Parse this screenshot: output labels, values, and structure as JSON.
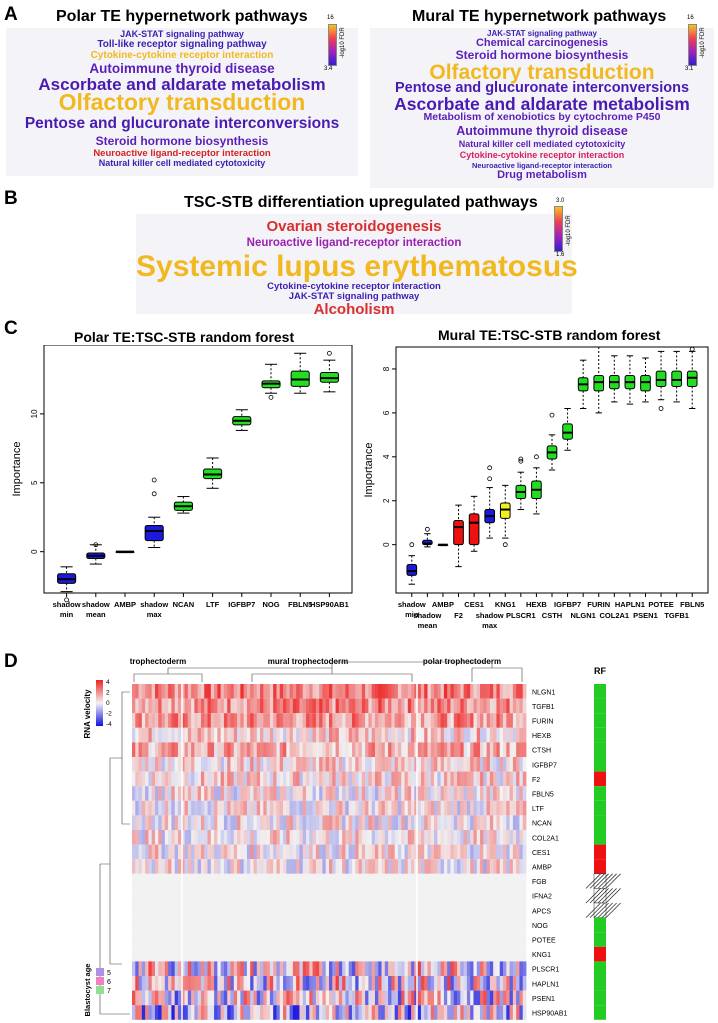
{
  "panels": {
    "a": "A",
    "b": "B",
    "c": "C",
    "d": "D"
  },
  "panel_a": {
    "polar": {
      "title": "Polar TE hypernetwork pathways",
      "colorbar": {
        "max": "16",
        "min": "3.4",
        "label": "-log10 FDR"
      },
      "terms": [
        {
          "text": "JAK-STAT signaling pathway",
          "size": 9,
          "color": "#3c1fb0"
        },
        {
          "text": "Toll-like receptor signaling pathway",
          "size": 10,
          "color": "#3c1fb0"
        },
        {
          "text": "Cytokine-cytokine receptor interaction",
          "size": 10,
          "color": "#f2b820"
        },
        {
          "text": "Autoimmune thyroid disease",
          "size": 13.5,
          "color": "#5a1fb8"
        },
        {
          "text": "Ascorbate and aldarate metabolism",
          "size": 17,
          "color": "#4a1bb0"
        },
        {
          "text": "Olfactory transduction",
          "size": 23,
          "color": "#f2b820"
        },
        {
          "text": "Pentose and glucuronate interconversions",
          "size": 15.5,
          "color": "#4a1bb0"
        },
        {
          "text": "Steroid hormone biosynthesis",
          "size": 12,
          "color": "#5a1fb8"
        },
        {
          "text": "Neuroactive ligand-receptor interaction",
          "size": 9.5,
          "color": "#d82020"
        },
        {
          "text": "Natural killer cell mediated cytotoxicity",
          "size": 9,
          "color": "#3c1fb0"
        }
      ]
    },
    "mural": {
      "title": "Mural TE hypernetwork pathways",
      "colorbar": {
        "max": "16",
        "min": "3.1",
        "label": "-log10 FDR"
      },
      "terms": [
        {
          "text": "JAK-STAT signaling pathway",
          "size": 8,
          "color": "#3c1fb0"
        },
        {
          "text": "Chemical carcinogenesis",
          "size": 11,
          "color": "#5a1fb8"
        },
        {
          "text": "Steroid hormone biosynthesis",
          "size": 12,
          "color": "#5a1fb8"
        },
        {
          "text": "Olfactory transduction",
          "size": 21,
          "color": "#f2b820"
        },
        {
          "text": "Pentose and glucuronate interconversions",
          "size": 14.5,
          "color": "#4a1bb0"
        },
        {
          "text": "Ascorbate and aldarate metabolism",
          "size": 17.5,
          "color": "#4a1bb0"
        },
        {
          "text": "Metabolism of xenobiotics by cytochrome P450",
          "size": 10.5,
          "color": "#5a1fb8"
        },
        {
          "text": "Autoimmune thyroid disease",
          "size": 12.5,
          "color": "#5a1fb8"
        },
        {
          "text": "Natural killer cell mediated cytotoxicity",
          "size": 9,
          "color": "#5a1fb8"
        },
        {
          "text": "Cytokine-cytokine receptor interaction",
          "size": 9,
          "color": "#d82060"
        },
        {
          "text": "Neuroactive ligand-receptor interaction",
          "size": 7.5,
          "color": "#3c1fb0"
        },
        {
          "text": "Drug metabolism",
          "size": 11,
          "color": "#5a1fb8"
        }
      ]
    }
  },
  "panel_b": {
    "title": "TSC-STB differentiation upregulated pathways",
    "colorbar": {
      "max": "3.0",
      "min": "1.6",
      "label": "-log10 FDR"
    },
    "terms": [
      {
        "text": "Ovarian steroidogenesis",
        "size": 15,
        "color": "#d83030"
      },
      {
        "text": "Neuroactive ligand-receptor interaction",
        "size": 11.5,
        "color": "#9a20b0"
      },
      {
        "text": "Systemic lupus erythematosus",
        "size": 30,
        "color": "#f2b820"
      },
      {
        "text": "Cytokine-cytokine receptor interaction",
        "size": 9.5,
        "color": "#3c1fb0"
      },
      {
        "text": "JAK-STAT signaling pathway",
        "size": 9.5,
        "color": "#3c1fb0"
      },
      {
        "text": "Alcoholism",
        "size": 15,
        "color": "#d83030"
      }
    ]
  },
  "chart_data": [
    {
      "type": "box",
      "title": "Polar TE:TSC-STB random forest",
      "xlabel": "",
      "ylabel": "Importance",
      "ylim": [
        -3,
        15
      ],
      "yticks": [
        0,
        5,
        10
      ],
      "categories": [
        "shadow min",
        "shadow mean",
        "AMBP",
        "shadow max",
        "NCAN",
        "LTF",
        "IGFBP7",
        "NOG",
        "FBLN5",
        "HSP90AB1"
      ],
      "medians": [
        -2.0,
        -0.3,
        0.0,
        1.5,
        3.3,
        5.6,
        9.5,
        12.2,
        12.5,
        12.6
      ],
      "q1": [
        -2.3,
        -0.5,
        0.0,
        0.8,
        3.0,
        5.3,
        9.2,
        11.9,
        12.0,
        12.3
      ],
      "q3": [
        -1.6,
        -0.1,
        0.0,
        1.9,
        3.6,
        6.0,
        9.8,
        12.4,
        13.1,
        13.0
      ],
      "whisker_low": [
        -2.9,
        -0.9,
        0.0,
        0.3,
        2.8,
        4.6,
        8.8,
        11.5,
        11.5,
        11.6
      ],
      "whisker_high": [
        -1.1,
        0.5,
        0.0,
        2.5,
        4.0,
        6.8,
        10.3,
        13.6,
        14.4,
        13.9
      ],
      "outliers": [
        [
          -3.5
        ],
        [
          0.5
        ],
        [],
        [
          4.2,
          5.2
        ],
        [],
        [],
        [],
        [
          11.2
        ],
        [],
        [
          14.4
        ]
      ],
      "colors": [
        "#1a1adc",
        "#1a1adc",
        "#1a1adc",
        "#1a1adc",
        "#22dd22",
        "#22dd22",
        "#22dd22",
        "#22dd22",
        "#22dd22",
        "#22dd22"
      ]
    },
    {
      "type": "box",
      "title": "Mural TE:TSC-STB random forest",
      "xlabel": "",
      "ylabel": "Importance",
      "ylim": [
        -2.2,
        9
      ],
      "yticks": [
        0,
        2,
        4,
        6,
        8
      ],
      "categories": [
        "shadow min",
        "shadow mean",
        "AMBP",
        "F2",
        "CES1",
        "shadow max",
        "KNG1",
        "PLSCR1",
        "HEXB",
        "CSTH",
        "IGFBP7",
        "NLGN1",
        "FURIN",
        "COL2A1",
        "HAPLN1",
        "PSEN1",
        "POTEE",
        "TGFB1",
        "FBLN5"
      ],
      "medians": [
        -1.2,
        0.05,
        0.0,
        0.8,
        1.0,
        1.3,
        1.6,
        2.4,
        2.5,
        4.2,
        5.1,
        7.3,
        7.4,
        7.4,
        7.4,
        7.4,
        7.5,
        7.5,
        7.6
      ],
      "q1": [
        -1.4,
        0.0,
        0.0,
        0.0,
        0.0,
        1.0,
        1.2,
        2.1,
        2.1,
        3.9,
        4.8,
        7.0,
        7.0,
        7.1,
        7.1,
        7.0,
        7.2,
        7.2,
        7.2
      ],
      "q3": [
        -0.9,
        0.2,
        0.0,
        1.1,
        1.4,
        1.6,
        1.9,
        2.7,
        2.9,
        4.5,
        5.5,
        7.6,
        7.7,
        7.7,
        7.7,
        7.7,
        7.9,
        7.9,
        7.9
      ],
      "whisker_low": [
        -1.8,
        -0.1,
        0.0,
        -1.0,
        -0.3,
        0.3,
        0.3,
        1.6,
        1.4,
        3.4,
        4.3,
        6.2,
        6.0,
        6.5,
        6.4,
        6.5,
        6.6,
        6.5,
        6.2
      ],
      "whisker_high": [
        -0.5,
        0.5,
        0.0,
        1.8,
        2.2,
        2.6,
        2.7,
        3.3,
        3.5,
        5.0,
        6.2,
        8.4,
        9.0,
        8.6,
        8.6,
        8.5,
        8.8,
        8.8,
        8.8
      ],
      "outliers": [
        [
          0.0
        ],
        [
          0.7
        ],
        [],
        [],
        [],
        [
          3.0,
          3.5
        ],
        [
          0.0
        ],
        [
          3.8,
          3.9
        ],
        [
          4.0
        ],
        [
          5.9
        ],
        [],
        [],
        [],
        [],
        [],
        [],
        [
          6.2
        ],
        [],
        [
          8.9
        ]
      ],
      "colors": [
        "#1a1adc",
        "#1a1adc",
        "#1a1adc",
        "#ee1111",
        "#ee1111",
        "#1a1adc",
        "#f0f020",
        "#22dd22",
        "#22dd22",
        "#22dd22",
        "#22dd22",
        "#22dd22",
        "#22dd22",
        "#22dd22",
        "#22dd22",
        "#22dd22",
        "#22dd22",
        "#22dd22",
        "#22dd22"
      ]
    },
    {
      "type": "heatmap",
      "column_groups": [
        "trophectoderm",
        "mural trophectoderm",
        "polar trophectoderm"
      ],
      "rows": [
        "NLGN1",
        "TGFB1",
        "FURIN",
        "HEXB",
        "CTSH",
        "IGFBP7",
        "F2",
        "FBLN5",
        "LTF",
        "NCAN",
        "COL2A1",
        "CES1",
        "AMBP",
        "FGB",
        "IFNA2",
        "APCS",
        "NOG",
        "POTEE",
        "KNG1",
        "PLSCR1",
        "HAPLN1",
        "PSEN1",
        "HSP90AB1"
      ],
      "row_mean_velocity": [
        2.2,
        2.0,
        1.8,
        0.8,
        1.3,
        0.6,
        0.6,
        0.3,
        0.3,
        0.3,
        0.3,
        0.3,
        0.2,
        0.0,
        0.0,
        0.0,
        0.0,
        0.0,
        0.0,
        0.3,
        0.3,
        0.0,
        -0.6
      ],
      "color_scale": {
        "title": "RNA velocity",
        "ticks": [
          4,
          2,
          0,
          -2,
          -4
        ],
        "low": "#1111dd",
        "mid": "#f2f2f2",
        "high": "#ee2222"
      },
      "rf_labels": [
        "green",
        "green",
        "green",
        "green",
        "green",
        "green",
        "red",
        "green",
        "green",
        "green",
        "green",
        "red",
        "red",
        "hatched",
        "hatched",
        "hatched",
        "green",
        "green",
        "red",
        "green",
        "green",
        "green",
        "green"
      ],
      "rf_title": "RF",
      "blastocyst_age": {
        "title": "Blastocyst age",
        "levels": [
          {
            "label": "5",
            "color": "#b090e0"
          },
          {
            "label": "6",
            "color": "#f080c0"
          },
          {
            "label": "7",
            "color": "#90e090"
          }
        ]
      },
      "age_label": "age"
    }
  ]
}
